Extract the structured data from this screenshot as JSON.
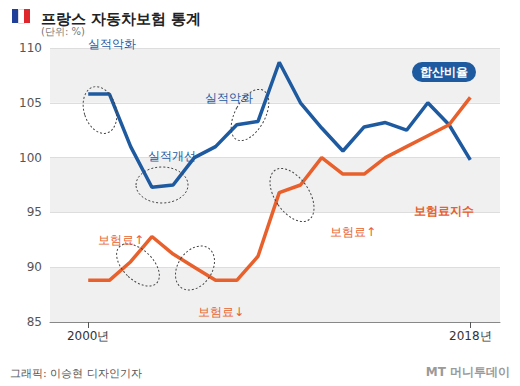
{
  "chart_data": {
    "type": "line",
    "title": "프랑스 자동차보험 통계",
    "subtitle": "(단위: %)",
    "x": [
      2000,
      2001,
      2002,
      2003,
      2004,
      2005,
      2006,
      2007,
      2008,
      2009,
      2010,
      2011,
      2012,
      2013,
      2014,
      2015,
      2016,
      2017,
      2018
    ],
    "xlim": [
      1998.2,
      2019.4
    ],
    "xticks": [
      {
        "value": 2000,
        "label": "2000년"
      },
      {
        "value": 2018,
        "label": "2018년"
      }
    ],
    "ylim": [
      85,
      110
    ],
    "yticks": [
      85,
      90,
      95,
      100,
      105,
      110
    ],
    "grid": true,
    "series": [
      {
        "name": "합산비율",
        "color": "#1e5aa0",
        "values": [
          105.8,
          105.8,
          101,
          97.3,
          97.5,
          100,
          101,
          103,
          103.3,
          108.7,
          105,
          102.7,
          100.6,
          102.8,
          103.2,
          102.5,
          105,
          103,
          99.8
        ]
      },
      {
        "name": "보험료지수",
        "color": "#e8602c",
        "values": [
          88.8,
          88.8,
          90.5,
          92.8,
          91.2,
          90,
          88.8,
          88.8,
          91,
          96.8,
          97.5,
          100,
          98.5,
          98.5,
          100,
          101,
          102,
          103,
          105.5
        ]
      }
    ],
    "annotations": [
      {
        "text": "실적악화",
        "color": "#1e5aa0"
      },
      {
        "text": "실적개선",
        "color": "#1e5aa0"
      },
      {
        "text": "실적악화",
        "color": "#1e5aa0"
      },
      {
        "text": "보험료↑",
        "color": "#e8602c"
      },
      {
        "text": "보험료↓",
        "color": "#e8602c"
      },
      {
        "text": "보험료↑",
        "color": "#e8602c"
      }
    ],
    "credit": "그래픽: 이승현 디자인기자",
    "watermark": "MT 머니투데이"
  }
}
